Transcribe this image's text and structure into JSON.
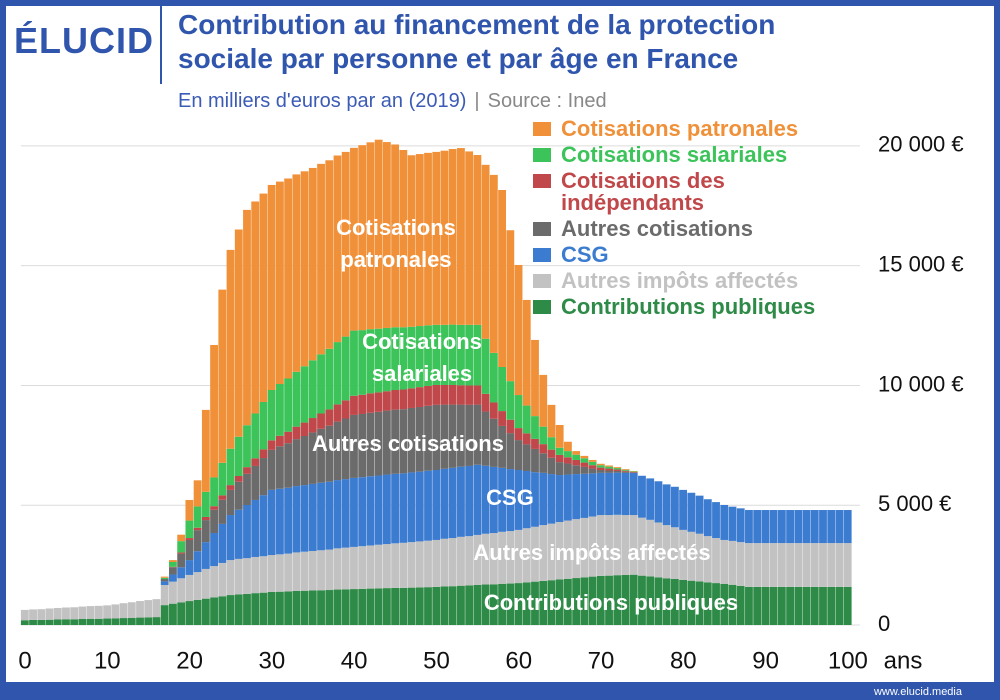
{
  "header": {
    "logo": "ÉLUCID"
  },
  "footer": {
    "url": "www.elucid.media"
  },
  "chart_data": {
    "type": "bar",
    "stacked": true,
    "title": "Contribution au financement de la protection sociale par personne et par âge en France",
    "subtitle": "En milliers d'euros par an (2019)",
    "source": "Source : Ined",
    "x_label": "ans",
    "x": [
      0,
      1,
      2,
      3,
      4,
      5,
      6,
      7,
      8,
      9,
      10,
      11,
      12,
      13,
      14,
      15,
      16,
      17,
      18,
      19,
      20,
      21,
      22,
      23,
      24,
      25,
      26,
      27,
      28,
      29,
      30,
      31,
      32,
      33,
      34,
      35,
      36,
      37,
      38,
      39,
      40,
      41,
      42,
      43,
      44,
      45,
      46,
      47,
      48,
      49,
      50,
      51,
      52,
      53,
      54,
      55,
      56,
      57,
      58,
      59,
      60,
      61,
      62,
      63,
      64,
      65,
      66,
      67,
      68,
      69,
      70,
      71,
      72,
      73,
      74,
      75,
      76,
      77,
      78,
      79,
      80,
      81,
      82,
      83,
      84,
      85,
      86,
      87,
      88,
      89,
      90,
      91,
      92,
      93,
      94,
      95,
      96,
      97,
      98,
      99,
      100
    ],
    "xlim": [
      -0.5,
      100.5
    ],
    "xticks": [
      0,
      10,
      20,
      30,
      40,
      50,
      60,
      70,
      80,
      90,
      100
    ],
    "ylim": [
      0,
      22000
    ],
    "yticks": [
      0,
      {
        "value": 5000,
        "label": "5 000 €"
      },
      {
        "value": 10000,
        "label": "10 000 €"
      },
      {
        "value": 15000,
        "label": "15 000 €"
      },
      {
        "value": 20000,
        "label": "20 000 €"
      }
    ],
    "grid": true,
    "legend": "top-right",
    "annotations": [
      "Cotisations patronales",
      "Cotisations salariales",
      "Autres cotisations",
      "CSG",
      "Autres impôts affectés",
      "Contributions publiques"
    ],
    "series": [
      {
        "name": "Contributions publiques",
        "color": "#2e8b47",
        "values": [
          200,
          210,
          210,
          220,
          230,
          240,
          240,
          250,
          260,
          260,
          270,
          280,
          290,
          300,
          310,
          320,
          330,
          830,
          890,
          940,
          1000,
          1050,
          1100,
          1150,
          1200,
          1250,
          1280,
          1300,
          1330,
          1350,
          1380,
          1390,
          1400,
          1420,
          1430,
          1440,
          1450,
          1460,
          1480,
          1490,
          1500,
          1510,
          1520,
          1530,
          1540,
          1550,
          1550,
          1560,
          1570,
          1580,
          1590,
          1610,
          1620,
          1640,
          1650,
          1670,
          1690,
          1700,
          1720,
          1730,
          1750,
          1780,
          1810,
          1840,
          1870,
          1900,
          1930,
          1960,
          1990,
          2020,
          2050,
          2060,
          2080,
          2090,
          2100,
          2060,
          2030,
          1990,
          1950,
          1920,
          1880,
          1850,
          1820,
          1780,
          1750,
          1720,
          1680,
          1630,
          1590,
          1590,
          1590,
          1590,
          1590,
          1590,
          1590,
          1590,
          1590,
          1590,
          1590,
          1590,
          1590
        ]
      },
      {
        "name": "Autres impôts affectés",
        "color": "#c2c2c2",
        "values": [
          430,
          440,
          450,
          470,
          480,
          490,
          500,
          520,
          530,
          540,
          550,
          580,
          620,
          650,
          690,
          720,
          750,
          840,
          920,
          1010,
          1090,
          1160,
          1240,
          1310,
          1390,
          1460,
          1480,
          1490,
          1510,
          1520,
          1540,
          1560,
          1580,
          1610,
          1630,
          1650,
          1670,
          1690,
          1720,
          1740,
          1760,
          1780,
          1800,
          1820,
          1840,
          1860,
          1880,
          1900,
          1920,
          1940,
          1960,
          1990,
          2010,
          2040,
          2060,
          2090,
          2120,
          2140,
          2170,
          2190,
          2220,
          2260,
          2290,
          2330,
          2360,
          2400,
          2430,
          2460,
          2480,
          2510,
          2540,
          2530,
          2520,
          2500,
          2490,
          2420,
          2360,
          2290,
          2220,
          2160,
          2090,
          2040,
          1990,
          1930,
          1880,
          1830,
          1830,
          1830,
          1830,
          1830,
          1830,
          1830,
          1830,
          1830,
          1830,
          1830,
          1830,
          1830,
          1830,
          1830,
          1830
        ]
      },
      {
        "name": "CSG",
        "color": "#3b7bd0",
        "values": [
          0,
          0,
          0,
          0,
          0,
          0,
          0,
          0,
          0,
          0,
          0,
          0,
          0,
          0,
          0,
          0,
          0,
          150,
          300,
          460,
          620,
          870,
          1120,
          1380,
          1630,
          1880,
          2050,
          2220,
          2380,
          2550,
          2720,
          2740,
          2750,
          2770,
          2780,
          2800,
          2820,
          2830,
          2850,
          2860,
          2880,
          2880,
          2890,
          2890,
          2900,
          2900,
          2900,
          2910,
          2910,
          2920,
          2920,
          2920,
          2930,
          2930,
          2930,
          2930,
          2840,
          2760,
          2670,
          2590,
          2500,
          2390,
          2280,
          2180,
          2070,
          1960,
          1920,
          1880,
          1840,
          1800,
          1760,
          1760,
          1760,
          1760,
          1760,
          1750,
          1730,
          1720,
          1700,
          1690,
          1670,
          1630,
          1590,
          1540,
          1500,
          1460,
          1430,
          1410,
          1380,
          1380,
          1380,
          1380,
          1380,
          1380,
          1380,
          1380,
          1380,
          1380,
          1380,
          1380,
          1380
        ]
      },
      {
        "name": "Autres cotisations",
        "color": "#6b6b6b",
        "values": [
          0,
          0,
          0,
          0,
          0,
          0,
          0,
          0,
          0,
          0,
          0,
          0,
          0,
          0,
          0,
          0,
          0,
          100,
          300,
          570,
          840,
          880,
          920,
          970,
          1010,
          1050,
          1170,
          1300,
          1420,
          1550,
          1670,
          1770,
          1860,
          1960,
          2050,
          2150,
          2250,
          2340,
          2440,
          2530,
          2630,
          2640,
          2650,
          2660,
          2670,
          2680,
          2680,
          2690,
          2700,
          2710,
          2720,
          2680,
          2640,
          2590,
          2550,
          2510,
          2260,
          2010,
          1750,
          1500,
          1250,
          1110,
          970,
          820,
          680,
          540,
          460,
          370,
          290,
          200,
          120,
          100,
          70,
          50,
          20,
          0,
          0,
          0,
          0,
          0,
          0,
          0,
          0,
          0,
          0,
          0,
          0,
          0,
          0,
          0,
          0,
          0,
          0,
          0,
          0,
          0,
          0,
          0,
          0,
          0,
          0
        ]
      },
      {
        "name": "Cotisations des indépendants",
        "color": "#c0474a",
        "values": [
          0,
          0,
          0,
          0,
          0,
          0,
          0,
          0,
          0,
          0,
          0,
          0,
          0,
          0,
          0,
          0,
          0,
          0,
          20,
          50,
          80,
          100,
          130,
          150,
          180,
          200,
          240,
          280,
          320,
          360,
          400,
          440,
          480,
          520,
          560,
          600,
          640,
          680,
          720,
          760,
          800,
          800,
          810,
          810,
          810,
          820,
          820,
          820,
          830,
          830,
          830,
          820,
          820,
          810,
          810,
          800,
          740,
          680,
          620,
          560,
          500,
          460,
          420,
          380,
          340,
          300,
          260,
          220,
          180,
          140,
          100,
          80,
          60,
          40,
          20,
          0,
          0,
          0,
          0,
          0,
          0,
          0,
          0,
          0,
          0,
          0,
          0,
          0,
          0,
          0,
          0,
          0,
          0,
          0,
          0,
          0,
          0,
          0,
          0,
          0,
          0
        ]
      },
      {
        "name": "Cotisations salariales",
        "color": "#3cc35a",
        "values": [
          0,
          0,
          0,
          0,
          0,
          0,
          0,
          0,
          0,
          0,
          0,
          0,
          0,
          0,
          0,
          0,
          0,
          50,
          200,
          470,
          730,
          890,
          1050,
          1200,
          1360,
          1520,
          1640,
          1750,
          1870,
          1980,
          2100,
          2160,
          2220,
          2290,
          2350,
          2410,
          2470,
          2530,
          2600,
          2660,
          2720,
          2700,
          2680,
          2660,
          2640,
          2620,
          2600,
          2570,
          2550,
          2530,
          2510,
          2510,
          2520,
          2520,
          2530,
          2530,
          2300,
          2070,
          1840,
          1610,
          1380,
          1160,
          950,
          730,
          520,
          300,
          260,
          220,
          180,
          140,
          100,
          80,
          60,
          40,
          20,
          0,
          0,
          0,
          0,
          0,
          0,
          0,
          0,
          0,
          0,
          0,
          0,
          0,
          0,
          0,
          0,
          0,
          0,
          0,
          0,
          0,
          0,
          0,
          0,
          0,
          0
        ]
      },
      {
        "name": "Cotisations patronales",
        "color": "#f0913a",
        "values": [
          0,
          0,
          0,
          0,
          0,
          0,
          0,
          0,
          0,
          0,
          0,
          0,
          0,
          0,
          0,
          0,
          0,
          50,
          80,
          270,
          860,
          1090,
          3420,
          5530,
          7230,
          8300,
          8650,
          8990,
          8850,
          8700,
          8560,
          8450,
          8350,
          8240,
          8140,
          8030,
          7950,
          7870,
          7790,
          7710,
          7630,
          7720,
          7800,
          7890,
          7760,
          7630,
          7400,
          7160,
          7180,
          7200,
          7220,
          7270,
          7330,
          7380,
          7240,
          7090,
          7260,
          7430,
          7390,
          6300,
          5430,
          4410,
          3180,
          2160,
          1350,
          950,
          390,
          150,
          100,
          80,
          60,
          50,
          40,
          30,
          20,
          0,
          0,
          0,
          0,
          0,
          0,
          0,
          0,
          0,
          0,
          0,
          0,
          0,
          0,
          0,
          0,
          0,
          0,
          0,
          0,
          0,
          0,
          0,
          0,
          0,
          0
        ]
      }
    ]
  }
}
